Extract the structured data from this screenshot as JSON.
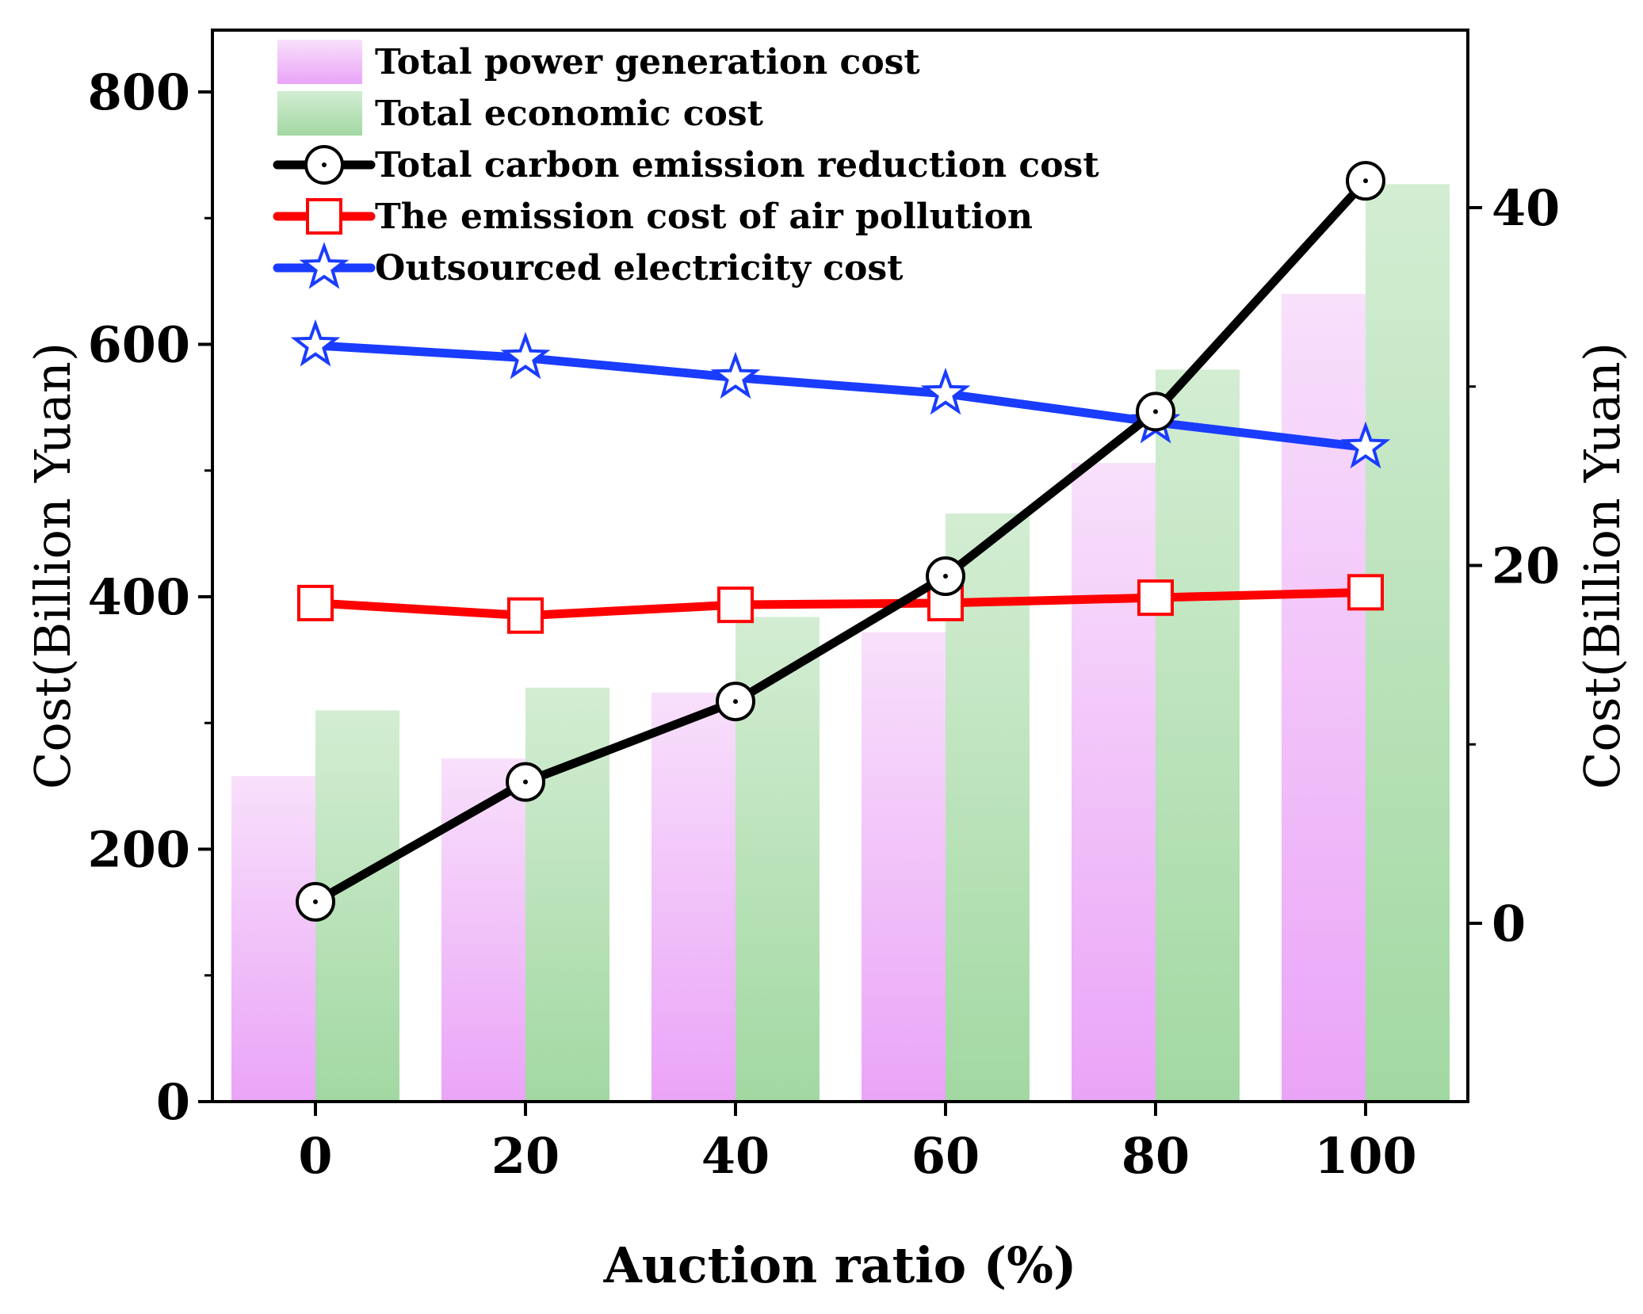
{
  "chart_data": {
    "type": "bar",
    "xlabel": "Auction ratio (%)",
    "ylabel_left": "Cost(Billion Yuan)",
    "ylabel_right": "Cost(Billion Yuan)",
    "ylim_left": [
      0,
      850
    ],
    "yticks_left": [
      0,
      200,
      400,
      600,
      800
    ],
    "ylim_right": [
      -10,
      50
    ],
    "yticks_right": [
      0,
      20,
      40
    ],
    "categories": [
      0,
      20,
      40,
      60,
      80,
      100
    ],
    "series": [
      {
        "name": "Total power generation cost",
        "kind": "bar",
        "axis": "left",
        "values": [
          258,
          272,
          324,
          372,
          506,
          640
        ]
      },
      {
        "name": "Total economic cost",
        "kind": "bar",
        "axis": "left",
        "values": [
          310,
          328,
          384,
          466,
          580,
          727
        ]
      },
      {
        "name": "Total carbon emission reduction cost",
        "kind": "line",
        "axis": "right",
        "marker": "circle-dot",
        "values": [
          1.2,
          7.9,
          12.4,
          19.4,
          28.6,
          41.5
        ]
      },
      {
        "name": "The emission cost of air pollution",
        "kind": "line",
        "axis": "right",
        "marker": "square",
        "values": [
          17.9,
          17.2,
          17.8,
          17.9,
          18.2,
          18.5
        ]
      },
      {
        "name": "Outsourced electricity cost",
        "kind": "line",
        "axis": "right",
        "marker": "star",
        "values": [
          32.3,
          31.6,
          30.5,
          29.6,
          28.0,
          26.6
        ]
      }
    ],
    "colors": {
      "bar1_top": "#f8e0fb",
      "bar1_bottom": "#eaa4f7",
      "bar2_top": "#d3edd3",
      "bar2_bottom": "#a2d8a2",
      "carbon": "#000000",
      "air": "#ff0000",
      "outsourced": "#1a3cff"
    }
  }
}
